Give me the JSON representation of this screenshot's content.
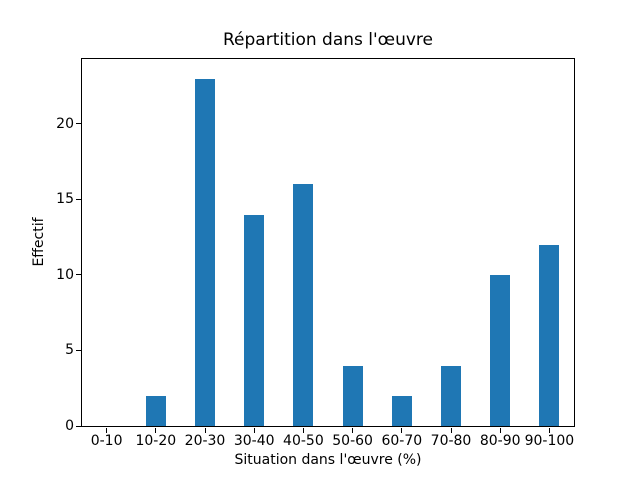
{
  "chart_data": {
    "type": "bar",
    "title": "Répartition dans l'œuvre",
    "xlabel": "Situation dans l'œuvre (%)",
    "ylabel": "Effectif",
    "categories": [
      "0-10",
      "10-20",
      "20-30",
      "30-40",
      "40-50",
      "50-60",
      "60-70",
      "70-80",
      "80-90",
      "90-100"
    ],
    "values": [
      0,
      2,
      23,
      14,
      16,
      4,
      2,
      4,
      10,
      12
    ],
    "yticks": [
      0,
      5,
      10,
      15,
      20
    ],
    "ylim": [
      0,
      24.3
    ],
    "bar_color": "#1f77b4",
    "grid": false,
    "legend": "none",
    "background_color": "#ffffff"
  }
}
